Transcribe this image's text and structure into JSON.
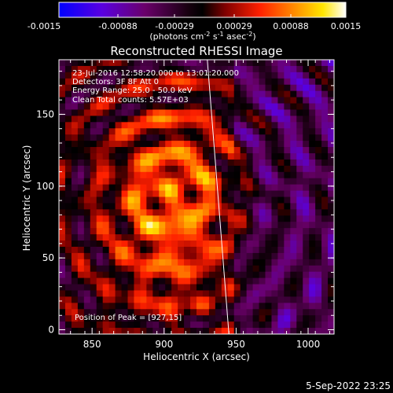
{
  "chart_data": {
    "type": "heatmap",
    "title": "Reconstructed RHESSI Image",
    "xlabel": "Heliocentric X (arcsec)",
    "ylabel": "Heliocentric Y (arcsec)",
    "xlim": [
      827,
      1018
    ],
    "ylim": [
      -3,
      188
    ],
    "x_ticks": [
      850,
      900,
      950,
      1000
    ],
    "y_ticks": [
      0,
      50,
      100,
      150
    ],
    "colorbar": {
      "range": [
        -0.0015,
        0.0015
      ],
      "tick_labels": [
        "-0.0015",
        "-0.00088",
        "-0.00029",
        "0.00029",
        "0.00088",
        "0.0015"
      ],
      "label": "(photons cm",
      "label_sup1": "-2",
      "label_mid": " s",
      "label_sup2": "-1",
      "label_end": " asec",
      "label_sup3": "-2",
      "label_close": ")",
      "colormap": [
        "#0000ff",
        "#6a00d8",
        "#7a0050",
        "#000000",
        "#8a0000",
        "#ff2200",
        "#ff8a00",
        "#ffe000",
        "#ffffff"
      ]
    },
    "annotations": [
      "23-Jul-2016 12:58:20.000 to 13:01:20.000",
      "Detectors: 3F 8F  Att 0",
      "Energy Range: 25.0 - 50.0 keV",
      "Clean  Total counts: 5.57E+03"
    ],
    "peak_label": "Position of Peak = [927,15]",
    "limb_line": {
      "x_start": 930,
      "y_start": 188,
      "x_end": 945,
      "y_end": -3
    },
    "image_grid": {
      "nx": 44,
      "ny": 44,
      "x_min": 827,
      "x_max": 1018,
      "y_min": -3,
      "y_max": 188
    }
  },
  "footer": {
    "timestamp": "5-Sep-2022 23:25"
  }
}
